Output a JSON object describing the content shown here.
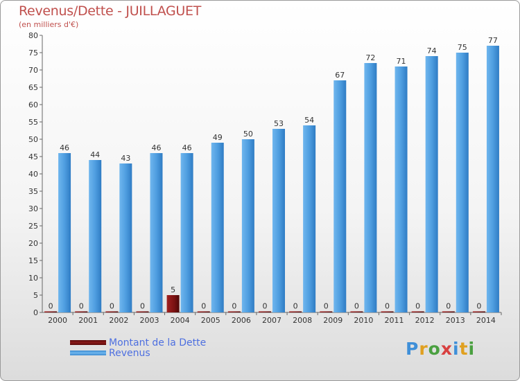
{
  "title": "Revenus/Dette - JUILLAGUET",
  "subtitle": "(en milliers d'€)",
  "logo": "Proxiti",
  "colors": {
    "title": "#c0504d",
    "dette": "#7a1212",
    "revenus": "#4f9ee0",
    "legend_text": "#4d6fe0"
  },
  "legend": [
    {
      "label": "Montant de la Dette",
      "color": "#7a1212"
    },
    {
      "label": "Revenus",
      "color": "#4f9ee0"
    }
  ],
  "chart_data": {
    "type": "bar",
    "categories": [
      "2000",
      "2001",
      "2002",
      "2003",
      "2004",
      "2005",
      "2006",
      "2007",
      "2008",
      "2009",
      "2010",
      "2011",
      "2012",
      "2013",
      "2014"
    ],
    "series": [
      {
        "name": "Montant de la Dette",
        "values": [
          0,
          0,
          0,
          0,
          5,
          0,
          0,
          0,
          0,
          0,
          0,
          0,
          0,
          0,
          0
        ]
      },
      {
        "name": "Revenus",
        "values": [
          46,
          44,
          43,
          46,
          46,
          49,
          50,
          53,
          54,
          67,
          72,
          71,
          74,
          75,
          77
        ]
      }
    ],
    "ylim": [
      0,
      80
    ],
    "yticks": [
      0,
      5,
      10,
      15,
      20,
      25,
      30,
      35,
      40,
      45,
      50,
      55,
      60,
      65,
      70,
      75,
      80
    ],
    "grid": false,
    "legend_position": "bottom-left"
  }
}
